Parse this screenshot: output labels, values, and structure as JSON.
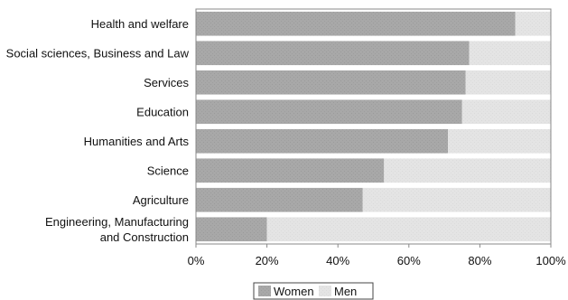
{
  "chart_data": {
    "type": "bar",
    "orientation": "horizontal",
    "stacked": "100%",
    "categories": [
      [
        "Health and welfare"
      ],
      [
        "Social sciences, Business and Law"
      ],
      [
        "Services"
      ],
      [
        "Education"
      ],
      [
        "Humanities and Arts"
      ],
      [
        "Science"
      ],
      [
        "Agriculture"
      ],
      [
        "Engineering, Manufacturing",
        "and Construction"
      ]
    ],
    "series": [
      {
        "name": "Women",
        "values": [
          90,
          77,
          76,
          75,
          71,
          53,
          47,
          20
        ]
      },
      {
        "name": "Men",
        "values": [
          10,
          23,
          24,
          25,
          29,
          47,
          53,
          80
        ]
      }
    ],
    "xlim": [
      0,
      100
    ],
    "xticks": [
      "0%",
      "20%",
      "40%",
      "60%",
      "80%",
      "100%"
    ],
    "title": "",
    "xlabel": "",
    "ylabel": "",
    "legend": "bottom-center",
    "grid": false,
    "colors": {
      "Women": "#a8a8a8",
      "Men": "#e4e4e4",
      "frame": "#888888"
    }
  }
}
